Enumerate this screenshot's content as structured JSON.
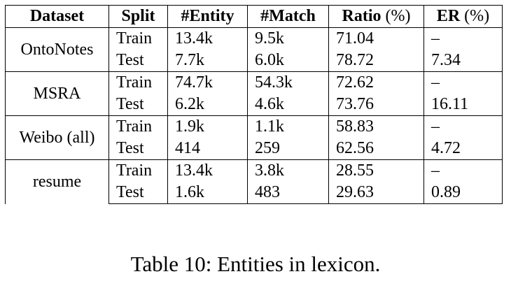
{
  "table": {
    "headers": [
      {
        "name": "Dataset",
        "unit": ""
      },
      {
        "name": "Split",
        "unit": ""
      },
      {
        "name": "#Entity",
        "unit": ""
      },
      {
        "name": "#Match",
        "unit": ""
      },
      {
        "name": "Ratio",
        "unit": "(%)"
      },
      {
        "name": "ER",
        "unit": "(%)"
      }
    ],
    "groups": [
      {
        "dataset": "OntoNotes",
        "rows": [
          {
            "split": "Train",
            "entity": "13.4k",
            "match": "9.5k",
            "ratio": "71.04",
            "er": "–"
          },
          {
            "split": "Test",
            "entity": "7.7k",
            "match": "6.0k",
            "ratio": "78.72",
            "er": "7.34"
          }
        ]
      },
      {
        "dataset": "MSRA",
        "rows": [
          {
            "split": "Train",
            "entity": "74.7k",
            "match": "54.3k",
            "ratio": "72.62",
            "er": "–"
          },
          {
            "split": "Test",
            "entity": "6.2k",
            "match": "4.6k",
            "ratio": "73.76",
            "er": "16.11"
          }
        ]
      },
      {
        "dataset": "Weibo (all)",
        "rows": [
          {
            "split": "Train",
            "entity": "1.9k",
            "match": "1.1k",
            "ratio": "58.83",
            "er": "–"
          },
          {
            "split": "Test",
            "entity": "414",
            "match": "259",
            "ratio": "62.56",
            "er": "4.72"
          }
        ]
      },
      {
        "dataset": "resume",
        "rows": [
          {
            "split": "Train",
            "entity": "13.4k",
            "match": "3.8k",
            "ratio": "28.55",
            "er": "–"
          },
          {
            "split": "Test",
            "entity": "1.6k",
            "match": "483",
            "ratio": "29.63",
            "er": "0.89"
          }
        ]
      }
    ]
  },
  "caption": "Table 10: Entities in lexicon."
}
